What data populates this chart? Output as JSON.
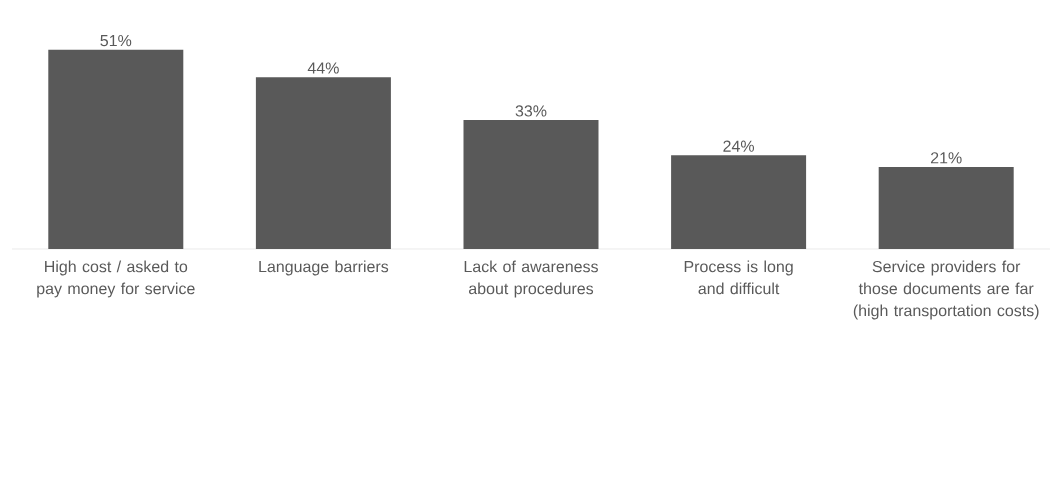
{
  "chart_data": {
    "type": "bar",
    "categories": [
      "High cost / asked to pay money for service",
      "Language barriers",
      "Lack of awareness about procedures",
      "Process is long and difficult",
      "Service providers for those documents are far (high transportation costs)"
    ],
    "values": [
      51,
      44,
      33,
      24,
      21
    ],
    "value_labels": [
      "51%",
      "44%",
      "33%",
      "24%",
      "21%"
    ],
    "color": "#595959"
  }
}
